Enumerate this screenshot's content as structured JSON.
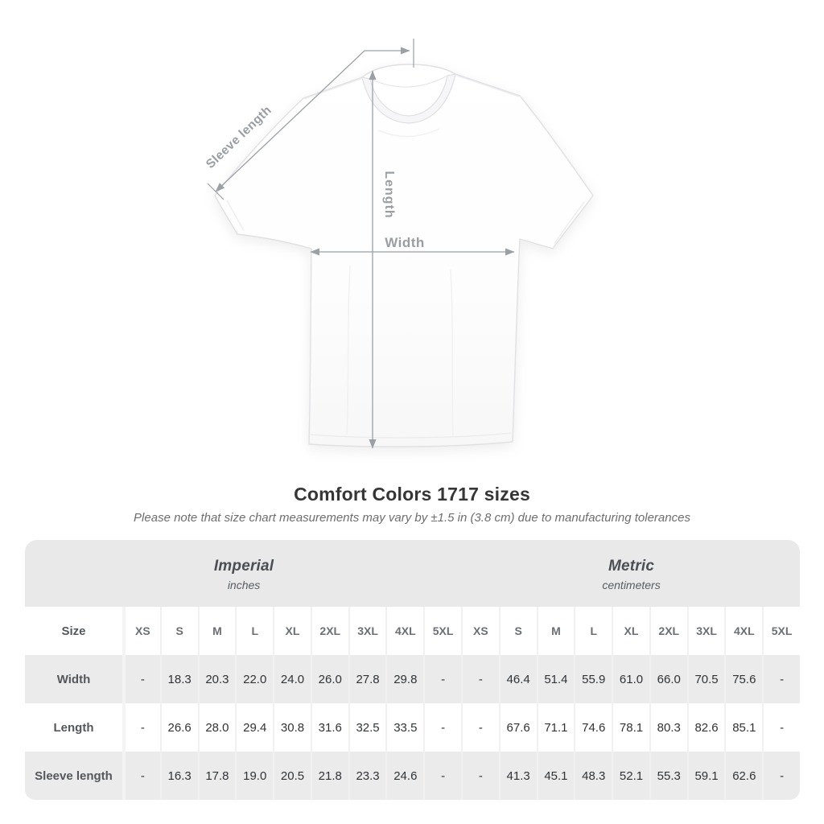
{
  "diagram": {
    "sleeve_length_label": "Sleeve length",
    "length_label": "Length",
    "width_label": "Width",
    "line_color": "#9aa0a5",
    "label_color": "#9a9ea3"
  },
  "chart_data": {
    "type": "table",
    "title": "Comfort Colors 1717 sizes",
    "note": "Please note that size chart measurements may vary by ±1.5 in (3.8 cm) due to manufacturing tolerances",
    "groups": [
      {
        "label": "Imperial",
        "unit": "inches"
      },
      {
        "label": "Metric",
        "unit": "centimeters"
      }
    ],
    "size_header": "Size",
    "sizes": [
      "XS",
      "S",
      "M",
      "L",
      "XL",
      "2XL",
      "3XL",
      "4XL",
      "5XL"
    ],
    "rows": [
      {
        "label": "Width",
        "imperial": [
          "-",
          "18.3",
          "20.3",
          "22.0",
          "24.0",
          "26.0",
          "27.8",
          "29.8",
          "-"
        ],
        "metric": [
          "-",
          "46.4",
          "51.4",
          "55.9",
          "61.0",
          "66.0",
          "70.5",
          "75.6",
          "-"
        ]
      },
      {
        "label": "Length",
        "imperial": [
          "-",
          "26.6",
          "28.0",
          "29.4",
          "30.8",
          "31.6",
          "32.5",
          "33.5",
          "-"
        ],
        "metric": [
          "-",
          "67.6",
          "71.1",
          "74.6",
          "78.1",
          "80.3",
          "82.6",
          "85.1",
          "-"
        ]
      },
      {
        "label": "Sleeve length",
        "imperial": [
          "-",
          "16.3",
          "17.8",
          "19.0",
          "20.5",
          "21.8",
          "23.3",
          "24.6",
          "-"
        ],
        "metric": [
          "-",
          "41.3",
          "45.1",
          "48.3",
          "52.1",
          "55.3",
          "59.1",
          "62.6",
          "-"
        ]
      }
    ],
    "stripe_color": "#ebebec",
    "band_color": "#e9e9ea"
  }
}
